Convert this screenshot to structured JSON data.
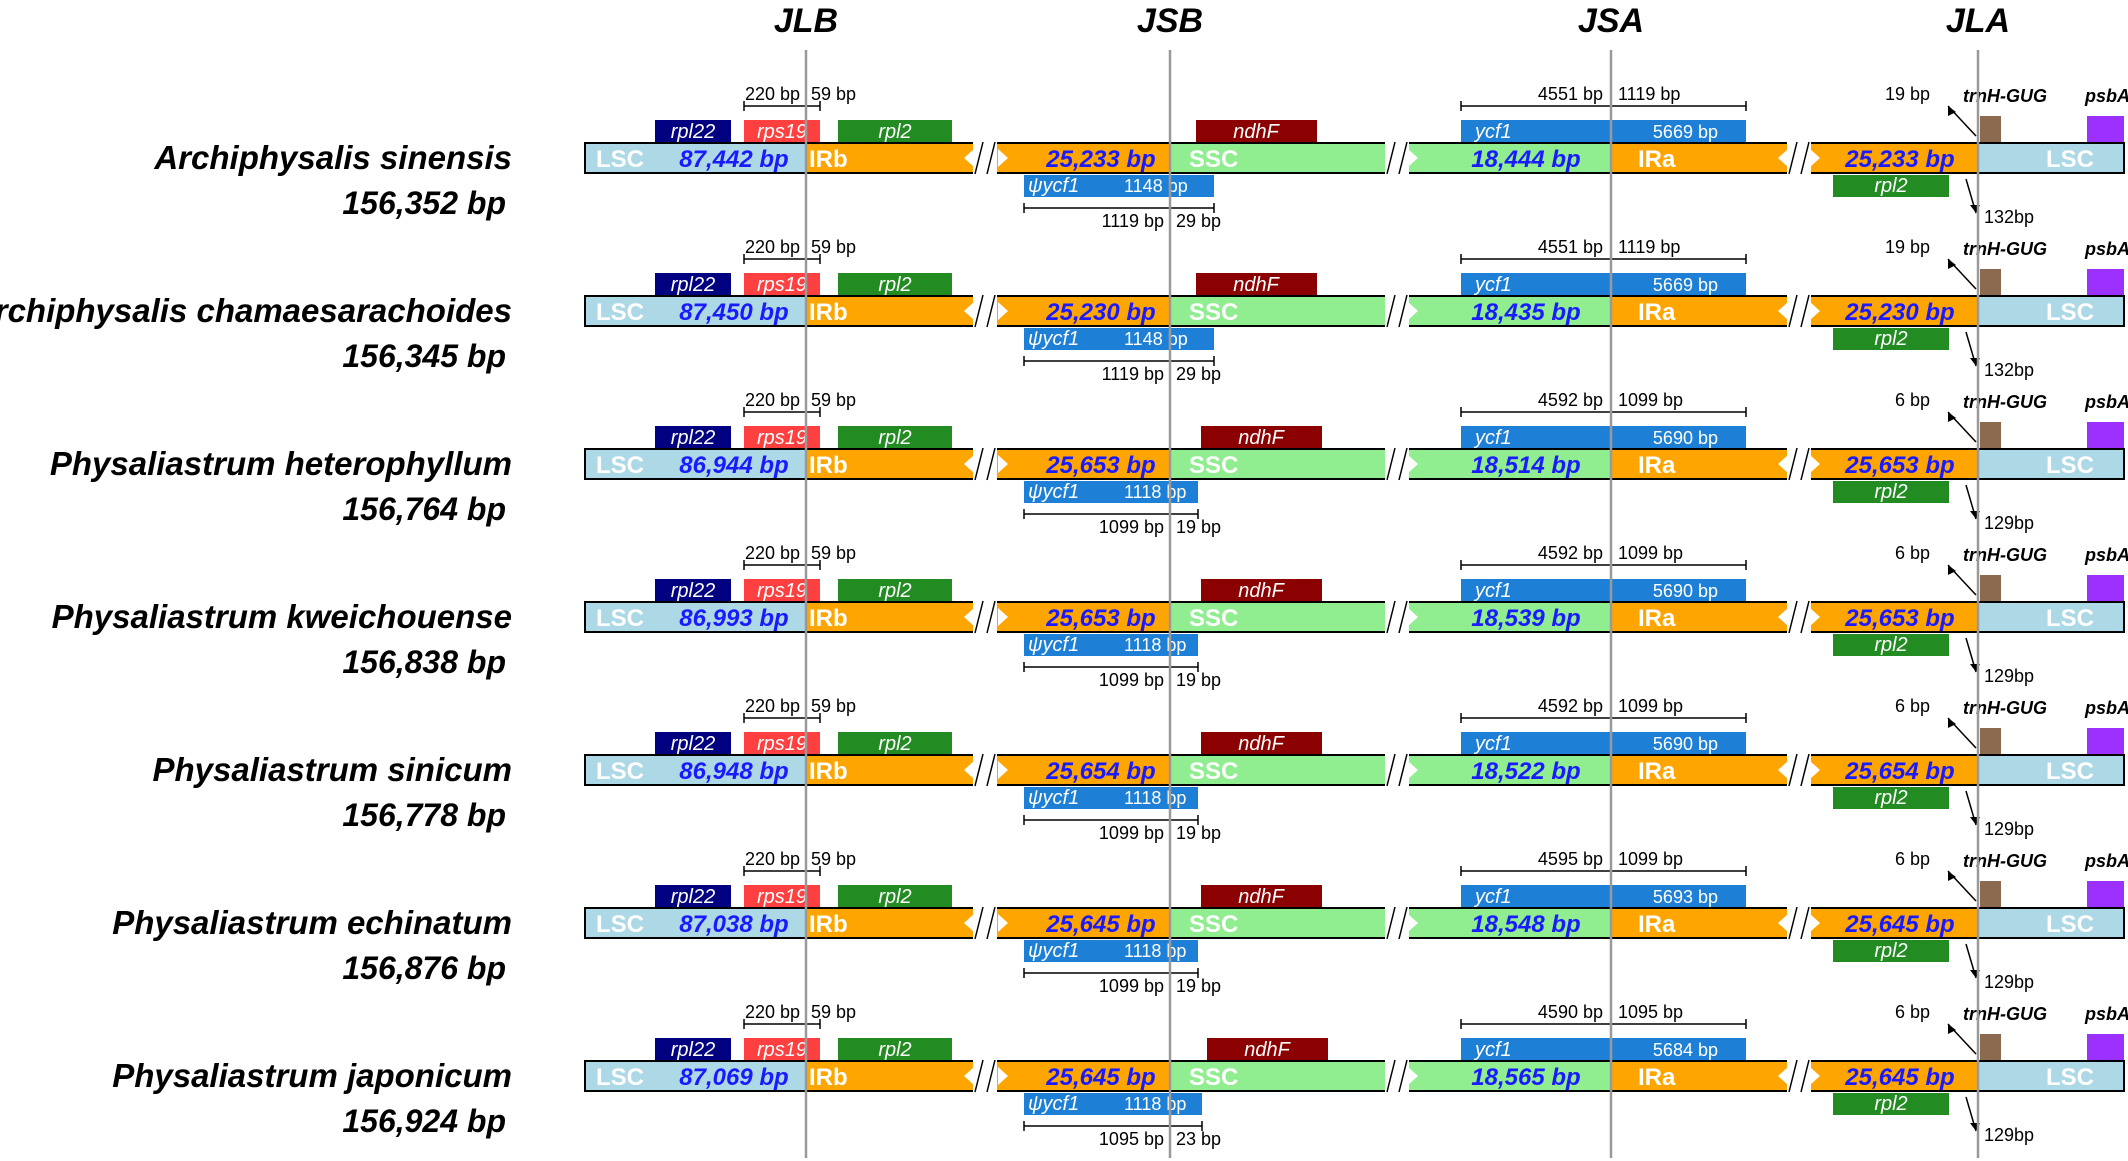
{
  "junctions": [
    "JLB",
    "JSB",
    "JSA",
    "JLA"
  ],
  "region_labels": {
    "lsc": "LSC",
    "irb": "IRb",
    "ssc": "SSC",
    "ira": "IRa"
  },
  "genes": {
    "rpl22": "rpl22",
    "rps19": "rps19",
    "rpl2": "rpl2",
    "ndhF": "ndhF",
    "ycf1": "ycf1",
    "psi_ycf1": "ψycf1",
    "trnH": "trnH-GUG",
    "psbA": "psbA"
  },
  "colors": {
    "lsc": "#add8e6",
    "ir": "#ffa500",
    "ssc": "#90ee90",
    "rpl22": "#000080",
    "rps19": "#ff4040",
    "rpl2": "#228b22",
    "ndhF": "#8b0000",
    "ycf1": "#1e7fd6",
    "trnH": "#8b6a4f",
    "psbA": "#9b30ff",
    "length_text": "#1a1aff",
    "junction_line": "#999999"
  },
  "species": [
    {
      "name": "Archiphysalis sinensis",
      "total": "156,352 bp",
      "lsc": "87,442 bp",
      "ir": "25,233 bp",
      "ssc": "18,444 bp",
      "jlb_left": "220 bp",
      "jlb_right": "59 bp",
      "ycf1_left": "4551 bp",
      "ycf1_right": "1119 bp",
      "ycf1_len": "5669 bp",
      "psi_len": "1148 bp",
      "psi_left": "1119 bp",
      "psi_right": "29 bp",
      "trnh_dist": "19 bp",
      "rpl2_dist": "132bp"
    },
    {
      "name": "Archiphysalis chamaesarachoides",
      "total": "156,345 bp",
      "lsc": "87,450 bp",
      "ir": "25,230 bp",
      "ssc": "18,435 bp",
      "jlb_left": "220 bp",
      "jlb_right": "59 bp",
      "ycf1_left": "4551 bp",
      "ycf1_right": "1119 bp",
      "ycf1_len": "5669 bp",
      "psi_len": "1148 bp",
      "psi_left": "1119 bp",
      "psi_right": "29 bp",
      "trnh_dist": "19 bp",
      "rpl2_dist": "132bp"
    },
    {
      "name": "Physaliastrum heterophyllum",
      "total": "156,764 bp",
      "lsc": "86,944 bp",
      "ir": "25,653 bp",
      "ssc": "18,514 bp",
      "jlb_left": "220 bp",
      "jlb_right": "59 bp",
      "ycf1_left": "4592 bp",
      "ycf1_right": "1099 bp",
      "ycf1_len": "5690 bp",
      "psi_len": "1118 bp",
      "psi_left": "1099 bp",
      "psi_right": "19 bp",
      "trnh_dist": "6 bp",
      "rpl2_dist": "129bp"
    },
    {
      "name": "Physaliastrum kweichouense",
      "total": "156,838 bp",
      "lsc": "86,993 bp",
      "ir": "25,653 bp",
      "ssc": "18,539 bp",
      "jlb_left": "220 bp",
      "jlb_right": "59 bp",
      "ycf1_left": "4592 bp",
      "ycf1_right": "1099 bp",
      "ycf1_len": "5690 bp",
      "psi_len": "1118 bp",
      "psi_left": "1099 bp",
      "psi_right": "19 bp",
      "trnh_dist": "6 bp",
      "rpl2_dist": "129bp"
    },
    {
      "name": "Physaliastrum sinicum",
      "total": "156,778 bp",
      "lsc": "86,948 bp",
      "ir": "25,654 bp",
      "ssc": "18,522 bp",
      "jlb_left": "220 bp",
      "jlb_right": "59 bp",
      "ycf1_left": "4592 bp",
      "ycf1_right": "1099 bp",
      "ycf1_len": "5690 bp",
      "psi_len": "1118 bp",
      "psi_left": "1099 bp",
      "psi_right": "19 bp",
      "trnh_dist": "6 bp",
      "rpl2_dist": "129bp"
    },
    {
      "name": "Physaliastrum echinatum",
      "total": "156,876 bp",
      "lsc": "87,038 bp",
      "ir": "25,645 bp",
      "ssc": "18,548 bp",
      "jlb_left": "220 bp",
      "jlb_right": "59 bp",
      "ycf1_left": "4595 bp",
      "ycf1_right": "1099 bp",
      "ycf1_len": "5693 bp",
      "psi_len": "1118 bp",
      "psi_left": "1099 bp",
      "psi_right": "19 bp",
      "trnh_dist": "6 bp",
      "rpl2_dist": "129bp"
    },
    {
      "name": "Physaliastrum japonicum",
      "total": "156,924 bp",
      "lsc": "87,069 bp",
      "ir": "25,645 bp",
      "ssc": "18,565 bp",
      "jlb_left": "220 bp",
      "jlb_right": "59 bp",
      "ycf1_left": "4590 bp",
      "ycf1_right": "1095 bp",
      "ycf1_len": "5684 bp",
      "psi_len": "1118 bp",
      "psi_left": "1095 bp",
      "psi_right": "23 bp",
      "trnh_dist": "6 bp",
      "rpl2_dist": "129bp"
    }
  ]
}
